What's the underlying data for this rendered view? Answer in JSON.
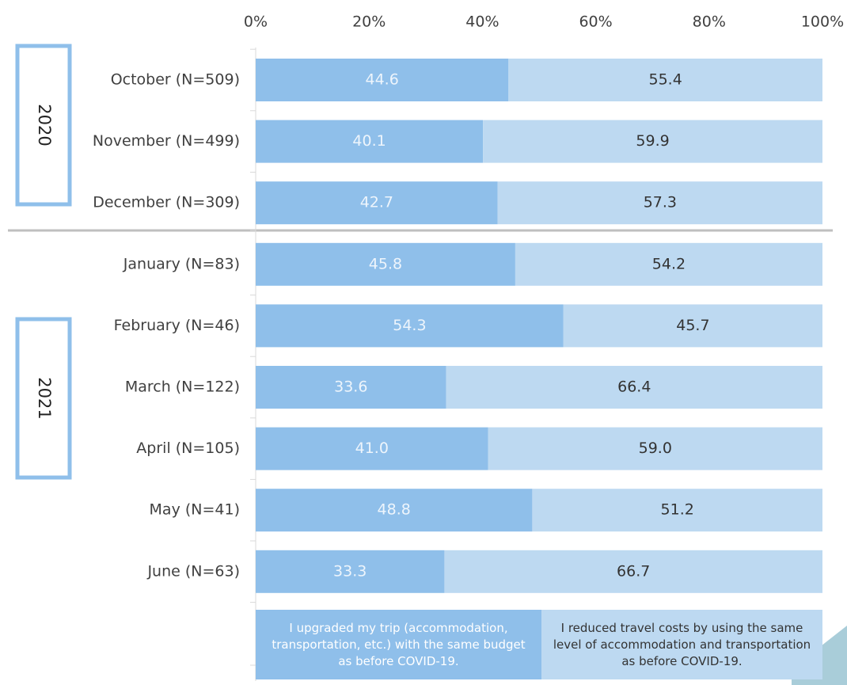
{
  "chart_data": {
    "type": "stacked_barh",
    "categories": [
      "October (N=509)",
      "November (N=499)",
      "December (N=309)",
      "January (N=83)",
      "February (N=46)",
      "March (N=122)",
      "April (N=105)",
      "May (N=41)",
      "June (N=63)"
    ],
    "groups": [
      "2020",
      "2021"
    ],
    "series": [
      {
        "name": "I upgraded my trip (accommodation, transportation, etc.) with the same budget as before COVID-19.",
        "color": "#8fbfea",
        "values": [
          44.6,
          40.1,
          42.7,
          45.8,
          54.3,
          33.6,
          41.0,
          48.8,
          33.3
        ],
        "value_labels": [
          "44.6",
          "40.1",
          "42.7",
          "45.8",
          "54.3",
          "33.6",
          "41.0",
          "48.8",
          "33.3"
        ]
      },
      {
        "name": "I reduced travel costs by using the same level of accommodation and transportation as before COVID-19.",
        "color": "#bdd9f1",
        "values": [
          55.4,
          59.9,
          57.3,
          54.2,
          45.7,
          66.4,
          59.0,
          51.2,
          66.7
        ],
        "value_labels": [
          "55.4",
          "59.9",
          "57.3",
          "54.2",
          "45.7",
          "66.4",
          "59.0",
          "51.2",
          "66.7"
        ]
      }
    ],
    "xlim": [
      0,
      100
    ],
    "xticks": [
      {
        "value": 0,
        "label": "0%"
      },
      {
        "value": 20,
        "label": "20%"
      },
      {
        "value": 40,
        "label": "40%"
      },
      {
        "value": 60,
        "label": "60%"
      },
      {
        "value": 80,
        "label": "80%"
      },
      {
        "value": 100,
        "label": "100%"
      }
    ]
  }
}
